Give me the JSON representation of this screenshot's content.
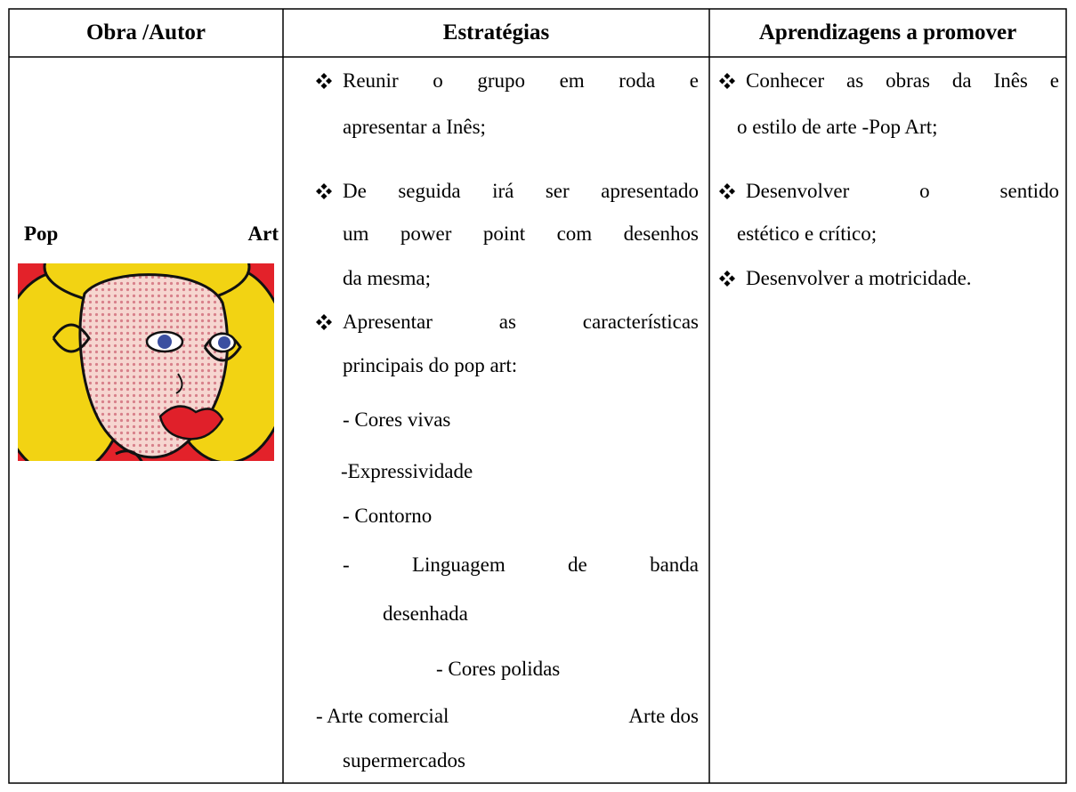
{
  "table": {
    "headers": [
      "Obra /Autor",
      "Estratégias",
      "Aprendizagens a promover"
    ],
    "obra": "Pop Art",
    "estrategias": [
      "Reunir o grupo em roda e",
      "apresentar a Inês;",
      "De seguida irá ser apresentado",
      "um power point com desenhos",
      "da mesma;",
      "Apresentar as características",
      "principais do pop art:",
      "- Cores vivas",
      "-Expressividade",
      "- Contorno",
      "- Linguagem de banda",
      "desenhada",
      "- Cores polidas",
      "- Arte comercial",
      "Arte dos",
      "supermercados"
    ],
    "aprendizagens": [
      "Conhecer as obras da Inês e",
      "o estilo de arte -Pop Art;",
      "Desenvolver o sentido",
      "estético e crítico;",
      "Desenvolver a motricidade."
    ]
  }
}
